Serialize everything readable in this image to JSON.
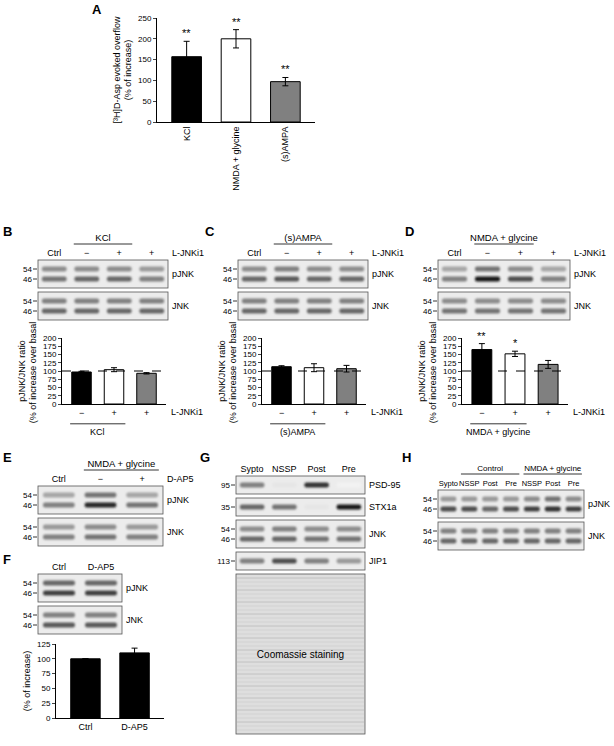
{
  "chart_data": [
    {
      "panel": "A",
      "type": "bar",
      "categories": [
        "KCl",
        "NMDA + glycine",
        "(s)AMPA"
      ],
      "values": [
        157,
        200,
        97
      ],
      "errors": [
        37,
        22,
        10
      ],
      "colors": [
        "#000000",
        "#ffffff",
        "#808080"
      ],
      "significance": [
        "**",
        "**",
        "**"
      ],
      "ylabel": [
        "[³H]D-Asp evoked overflow",
        "(% of increase)"
      ],
      "ylim": [
        0,
        250
      ],
      "yticks": [
        0,
        50,
        100,
        150,
        200,
        250
      ]
    },
    {
      "panel": "B",
      "type": "bar",
      "categories": [
        "−",
        "+",
        "+"
      ],
      "values": [
        97,
        104,
        93
      ],
      "errors": [
        2,
        6,
        2
      ],
      "colors": [
        "#000000",
        "#ffffff",
        "#808080"
      ],
      "reference_line": 100,
      "group": {
        "label": "KCl",
        "span": [
          0,
          1
        ]
      },
      "side_label": "L-JNKi1",
      "ylabel": [
        "pJNK/JNK ratio",
        "(% of increase over basal)"
      ],
      "ylim": [
        0,
        200
      ],
      "yticks": [
        0,
        25,
        50,
        75,
        100,
        125,
        150,
        175,
        200
      ]
    },
    {
      "panel": "C",
      "type": "bar",
      "categories": [
        "−",
        "+",
        "+"
      ],
      "values": [
        113,
        110,
        107
      ],
      "errors": [
        3,
        12,
        10
      ],
      "colors": [
        "#000000",
        "#ffffff",
        "#808080"
      ],
      "reference_line": 100,
      "group": {
        "label": "(s)AMPA",
        "span": [
          0,
          1
        ]
      },
      "side_label": "L-JNKi1",
      "ylabel": [
        "pJNK/JNK ratio",
        "(% of increase over basal)"
      ],
      "ylim": [
        0,
        200
      ],
      "yticks": [
        0,
        25,
        50,
        75,
        100,
        125,
        150,
        175,
        200
      ]
    },
    {
      "panel": "D",
      "type": "bar",
      "categories": [
        "−",
        "+",
        "+"
      ],
      "values": [
        165,
        152,
        120
      ],
      "errors": [
        18,
        8,
        12
      ],
      "colors": [
        "#000000",
        "#ffffff",
        "#808080"
      ],
      "significance": [
        "**",
        "*",
        null
      ],
      "reference_line": 100,
      "group": {
        "label": "NMDA + glycine",
        "span": [
          0,
          1
        ]
      },
      "side_label": "L-JNKi1",
      "ylabel": [
        "pJNK/JNK ratio",
        "(% of increase over basal)"
      ],
      "ylim": [
        0,
        200
      ],
      "yticks": [
        0,
        25,
        50,
        75,
        100,
        125,
        150,
        175,
        200
      ]
    },
    {
      "panel": "F",
      "type": "bar",
      "categories": [
        "Ctrl",
        "D-AP5"
      ],
      "values": [
        100,
        110
      ],
      "errors": [
        0,
        8
      ],
      "colors": [
        "#000000",
        "#000000"
      ],
      "ylabel": [
        "(% of increase)"
      ],
      "ylim": [
        0,
        125
      ],
      "yticks": [
        0,
        25,
        50,
        75,
        100,
        125
      ]
    }
  ],
  "blots": [
    {
      "panel": "B",
      "groups": [
        {
          "label": "KCl",
          "span": [
            1,
            2
          ]
        }
      ],
      "lanes": [
        "Ctrl",
        "−",
        "+",
        "+"
      ],
      "side_label": "L-JNKi1",
      "rows": [
        {
          "label": "pJNK",
          "mw": [
            54,
            46
          ],
          "bands": [
            [
              0.45,
              0.45,
              0.45,
              0.4
            ],
            [
              0.55,
              0.6,
              0.6,
              0.5
            ]
          ]
        },
        {
          "label": "JNK",
          "mw": [
            54,
            46
          ],
          "bands": [
            [
              0.5,
              0.5,
              0.5,
              0.5
            ],
            [
              0.6,
              0.6,
              0.6,
              0.6
            ]
          ]
        }
      ]
    },
    {
      "panel": "C",
      "groups": [
        {
          "label": "(s)AMPA",
          "span": [
            1,
            2
          ]
        }
      ],
      "lanes": [
        "Ctrl",
        "−",
        "+",
        "+"
      ],
      "side_label": "L-JNKi1",
      "rows": [
        {
          "label": "pJNK",
          "mw": [
            54,
            46
          ],
          "bands": [
            [
              0.45,
              0.5,
              0.45,
              0.45
            ],
            [
              0.6,
              0.65,
              0.6,
              0.6
            ]
          ]
        },
        {
          "label": "JNK",
          "mw": [
            54,
            46
          ],
          "bands": [
            [
              0.5,
              0.5,
              0.5,
              0.5
            ],
            [
              0.6,
              0.6,
              0.6,
              0.6
            ]
          ]
        }
      ]
    },
    {
      "panel": "D",
      "groups": [
        {
          "label": "NMDA + glycine",
          "span": [
            1,
            2
          ]
        }
      ],
      "lanes": [
        "Ctrl",
        "−",
        "+",
        "+"
      ],
      "side_label": "L-JNKi1",
      "rows": [
        {
          "label": "pJNK",
          "mw": [
            54,
            46
          ],
          "bands": [
            [
              0.35,
              0.55,
              0.45,
              0.35
            ],
            [
              0.5,
              0.9,
              0.7,
              0.5
            ]
          ]
        },
        {
          "label": "JNK",
          "mw": [
            54,
            46
          ],
          "bands": [
            [
              0.45,
              0.45,
              0.45,
              0.45
            ],
            [
              0.55,
              0.55,
              0.55,
              0.55
            ]
          ]
        }
      ]
    },
    {
      "panel": "E",
      "groups": [
        {
          "label": "NMDA + glycine",
          "span": [
            1,
            2
          ]
        }
      ],
      "lanes": [
        "Ctrl",
        "−",
        "+"
      ],
      "side_label": "D-AP5",
      "rows": [
        {
          "label": "pJNK",
          "mw": [
            54,
            46
          ],
          "bands": [
            [
              0.35,
              0.55,
              0.35
            ],
            [
              0.5,
              0.85,
              0.55
            ]
          ]
        },
        {
          "label": "JNK",
          "mw": [
            54,
            46
          ],
          "bands": [
            [
              0.4,
              0.45,
              0.4
            ],
            [
              0.5,
              0.55,
              0.5
            ]
          ]
        }
      ]
    },
    {
      "panel": "F",
      "lanes": [
        "Ctrl",
        "D-AP5"
      ],
      "rows": [
        {
          "label": "pJNK",
          "mw": [
            54,
            46
          ],
          "bands": [
            [
              0.6,
              0.6
            ],
            [
              0.75,
              0.75
            ]
          ]
        },
        {
          "label": "JNK",
          "mw": [
            54,
            46
          ],
          "bands": [
            [
              0.5,
              0.5
            ],
            [
              0.65,
              0.65
            ]
          ]
        }
      ]
    },
    {
      "panel": "G",
      "lanes": [
        "Sypto",
        "NSSP",
        "Post",
        "Pre"
      ],
      "rows": [
        {
          "label": "PSD-95",
          "mw": [
            95
          ],
          "bands": [
            [
              0.5,
              0.1,
              0.8,
              0.05
            ]
          ]
        },
        {
          "label": "STX1a",
          "mw": [
            35
          ],
          "bands": [
            [
              0.6,
              0.55,
              0.1,
              0.9
            ]
          ]
        },
        {
          "label": "JNK",
          "mw": [
            54,
            46
          ],
          "bands": [
            [
              0.45,
              0.5,
              0.45,
              0.45
            ],
            [
              0.6,
              0.6,
              0.55,
              0.55
            ]
          ]
        },
        {
          "label": "JIP1",
          "mw": [
            113
          ],
          "bands": [
            [
              0.5,
              0.7,
              0.5,
              0.4
            ]
          ]
        },
        {
          "stain": "Coomassie staining"
        }
      ]
    },
    {
      "panel": "H",
      "groups": [
        {
          "label": "Control",
          "span": [
            1,
            3
          ]
        },
        {
          "label": "NMDA + glycine",
          "span": [
            4,
            6
          ]
        }
      ],
      "lanes": [
        "Sypto",
        "NSSP",
        "Post",
        "Pre",
        "NSSP",
        "Post",
        "Pre"
      ],
      "rows": [
        {
          "label": "pJNK",
          "mw": [
            54,
            46
          ],
          "bands": [
            [
              0.4,
              0.4,
              0.4,
              0.4,
              0.45,
              0.55,
              0.45
            ],
            [
              0.7,
              0.7,
              0.6,
              0.7,
              0.75,
              0.8,
              0.75
            ]
          ]
        },
        {
          "label": "JNK",
          "mw": [
            54,
            46
          ],
          "bands": [
            [
              0.5,
              0.5,
              0.5,
              0.5,
              0.5,
              0.5,
              0.5
            ],
            [
              0.6,
              0.6,
              0.6,
              0.6,
              0.6,
              0.6,
              0.6
            ]
          ]
        }
      ]
    }
  ]
}
